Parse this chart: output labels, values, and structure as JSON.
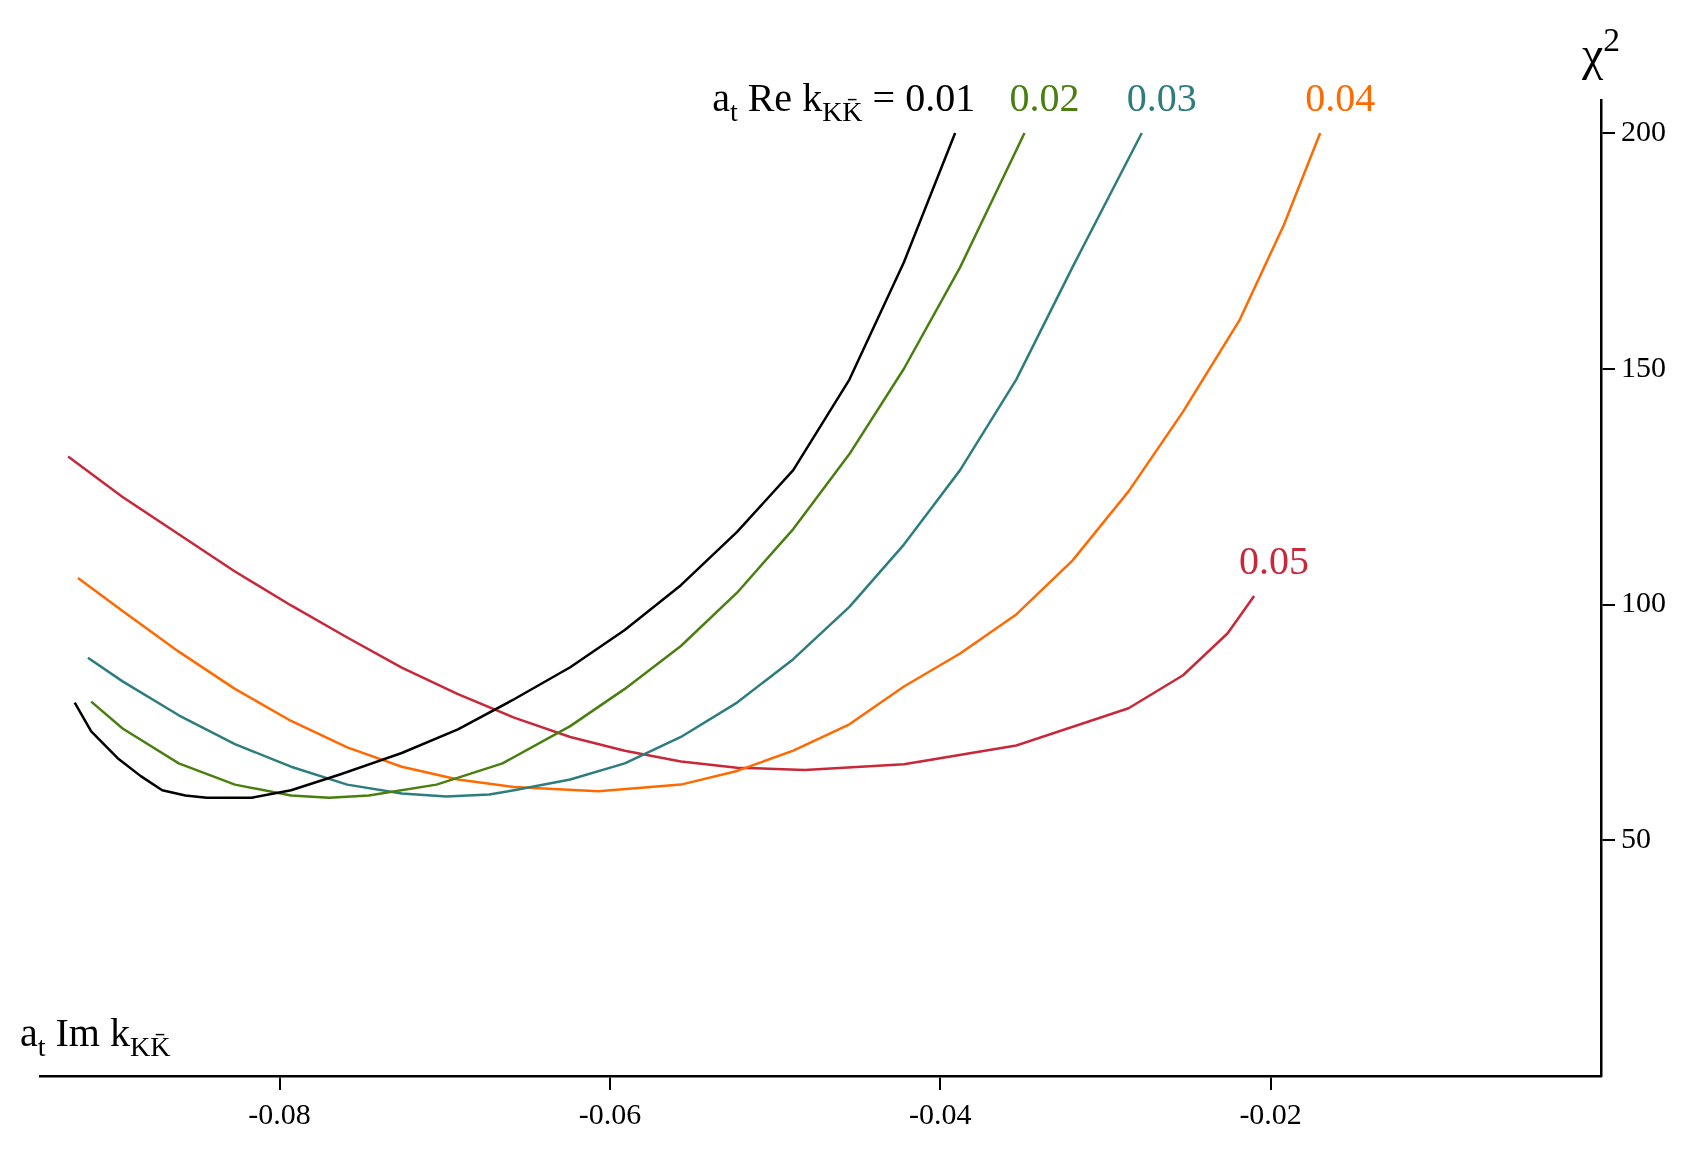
{
  "chart_data": {
    "type": "line",
    "xlabel": "a$_{t}$ Im k$_{KK̄}$",
    "ylabel": "χ$^{2}$",
    "annotations": [
      "a$_{t}$ Re k$_{KK̄}$ ="
    ],
    "xlim": [
      -0.0945,
      0
    ],
    "ylim": [
      0,
      207
    ],
    "xticks": [
      -0.08,
      -0.06,
      -0.04,
      -0.02
    ],
    "yticks": [
      50,
      100,
      150,
      200
    ],
    "grid": false,
    "legend": false,
    "marker": "none",
    "line_style": "solid",
    "series": [
      {
        "name": "0.01",
        "color": "#000000",
        "x": [
          -0.0924,
          -0.0914,
          -0.0898,
          -0.0884,
          -0.0871,
          -0.0857,
          -0.0844,
          -0.0817,
          -0.0793,
          -0.0763,
          -0.0726,
          -0.0692,
          -0.0658,
          -0.0624,
          -0.0591,
          -0.0557,
          -0.0523,
          -0.0489,
          -0.0455,
          -0.0422,
          -0.0391
        ],
        "values": [
          79.2,
          73.1,
          67.4,
          63.6,
          60.6,
          59.5,
          59.0,
          59.0,
          60.6,
          64.0,
          68.5,
          73.5,
          79.9,
          86.7,
          94.6,
          104.1,
          115.4,
          128.5,
          147.7,
          172.6,
          200
        ]
      },
      {
        "name": "0.02",
        "color": "#4a7f10",
        "x": [
          -0.0914,
          -0.0895,
          -0.0861,
          -0.0827,
          -0.0793,
          -0.077,
          -0.0746,
          -0.0705,
          -0.0665,
          -0.0624,
          -0.0591,
          -0.0557,
          -0.0523,
          -0.0489,
          -0.0455,
          -0.0422,
          -0.0388,
          -0.0349
        ],
        "values": [
          79.4,
          73.7,
          66.3,
          61.8,
          59.5,
          59.0,
          59.5,
          61.8,
          66.3,
          74.2,
          82.1,
          91.2,
          102.5,
          116.0,
          131.9,
          150.0,
          171.5,
          200
        ]
      },
      {
        "name": "0.03",
        "color": "#2e7d7d",
        "x": [
          -0.0916,
          -0.0895,
          -0.0861,
          -0.0827,
          -0.0793,
          -0.0759,
          -0.0726,
          -0.0699,
          -0.0673,
          -0.0658,
          -0.0624,
          -0.0591,
          -0.0557,
          -0.0523,
          -0.0489,
          -0.0455,
          -0.0422,
          -0.0388,
          -0.0354,
          -0.032,
          -0.0278
        ],
        "values": [
          88.7,
          83.7,
          76.5,
          70.4,
          65.6,
          61.8,
          59.9,
          59.3,
          59.7,
          60.6,
          62.9,
          66.3,
          71.9,
          79.2,
          88.4,
          99.5,
          112.7,
          128.5,
          147.7,
          171.5,
          200
        ]
      },
      {
        "name": "0.04",
        "color": "#ff6a00",
        "x": [
          -0.0922,
          -0.0895,
          -0.0861,
          -0.0827,
          -0.0793,
          -0.0759,
          -0.0726,
          -0.0692,
          -0.0658,
          -0.0607,
          -0.0557,
          -0.0523,
          -0.0489,
          -0.0455,
          -0.0422,
          -0.0388,
          -0.0354,
          -0.032,
          -0.0286,
          -0.0253,
          -0.0219,
          -0.0192,
          -0.017
        ],
        "values": [
          105.6,
          98.6,
          90.0,
          82.1,
          75.3,
          69.7,
          65.6,
          62.9,
          61.3,
          60.4,
          61.8,
          64.7,
          69.0,
          74.6,
          82.6,
          89.6,
          97.9,
          109.3,
          124.0,
          140.9,
          160.2,
          180.5,
          200
        ]
      },
      {
        "name": "0.05",
        "color": "#c8283a",
        "x": [
          -0.0928,
          -0.0895,
          -0.0861,
          -0.0827,
          -0.0793,
          -0.0759,
          -0.0726,
          -0.0692,
          -0.0658,
          -0.0624,
          -0.0591,
          -0.0557,
          -0.0523,
          -0.0482,
          -0.0422,
          -0.0354,
          -0.0286,
          -0.0253,
          -0.0226,
          -0.021
        ],
        "values": [
          131.4,
          122.8,
          114.9,
          107.0,
          99.8,
          93.0,
          86.6,
          81.0,
          76.0,
          71.9,
          69.0,
          66.7,
          65.4,
          64.9,
          66.1,
          70.1,
          78.0,
          85.0,
          93.9,
          101.8
        ]
      }
    ]
  }
}
